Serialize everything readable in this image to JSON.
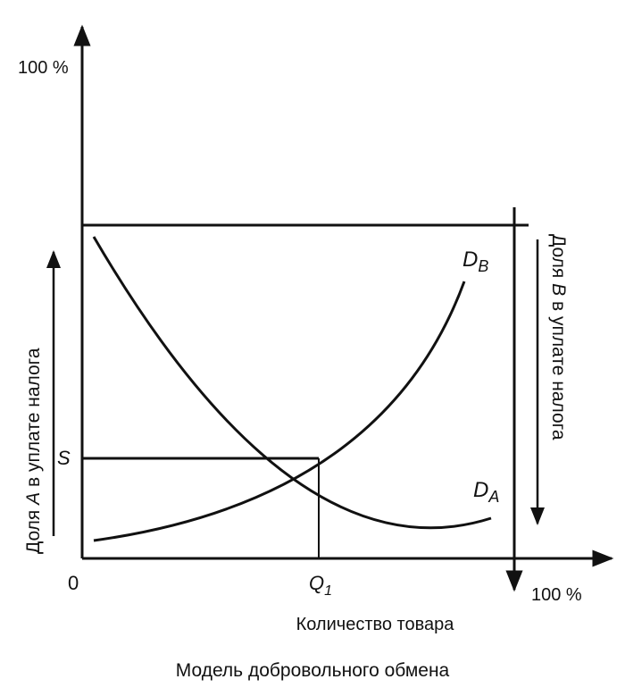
{
  "diagram": {
    "caption": "Модель добровольного обмена",
    "x_axis_label": "Количество товара",
    "origin_label": "0",
    "y_top_label": "100 %",
    "x_right_label": "100 %",
    "share_a_label_prefix": "Доля ",
    "share_a_label_letter": "A",
    "share_a_label_suffix": " в уплате налога",
    "share_b_label_prefix": "Доля ",
    "share_b_label_letter": "B",
    "share_b_label_suffix": " в уплате налога",
    "curve_b_label_main": "D",
    "curve_b_label_sub": "B",
    "curve_a_label_main": "D",
    "curve_a_label_sub": "A",
    "equilibrium_price_label": "S",
    "equilibrium_quantity_label_main": "Q",
    "equilibrium_quantity_label_sub": "1",
    "line_color": "#111111"
  }
}
